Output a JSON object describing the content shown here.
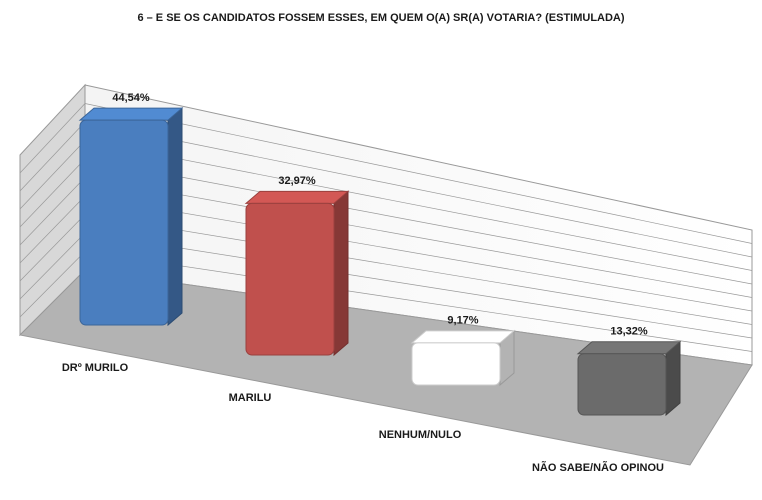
{
  "chart_data": {
    "type": "bar",
    "title": "6 – E SE OS CANDIDATOS FOSSEM ESSES, EM QUEM O(A) SR(A) VOTARIA? (ESTIMULADA)",
    "categories": [
      "DRº MURILO",
      "MARILU",
      "NENHUM/NULO",
      "NÃO SABE/NÃO OPINOU"
    ],
    "values": [
      44.54,
      32.97,
      9.17,
      13.32
    ],
    "value_labels": [
      "44,54%",
      "32,97%",
      "9,17%",
      "13,32%"
    ],
    "colors": [
      "#4a7ebf",
      "#c0504d",
      "#ffffff",
      "#6b6b6b"
    ],
    "ylim": [
      0,
      50
    ]
  }
}
